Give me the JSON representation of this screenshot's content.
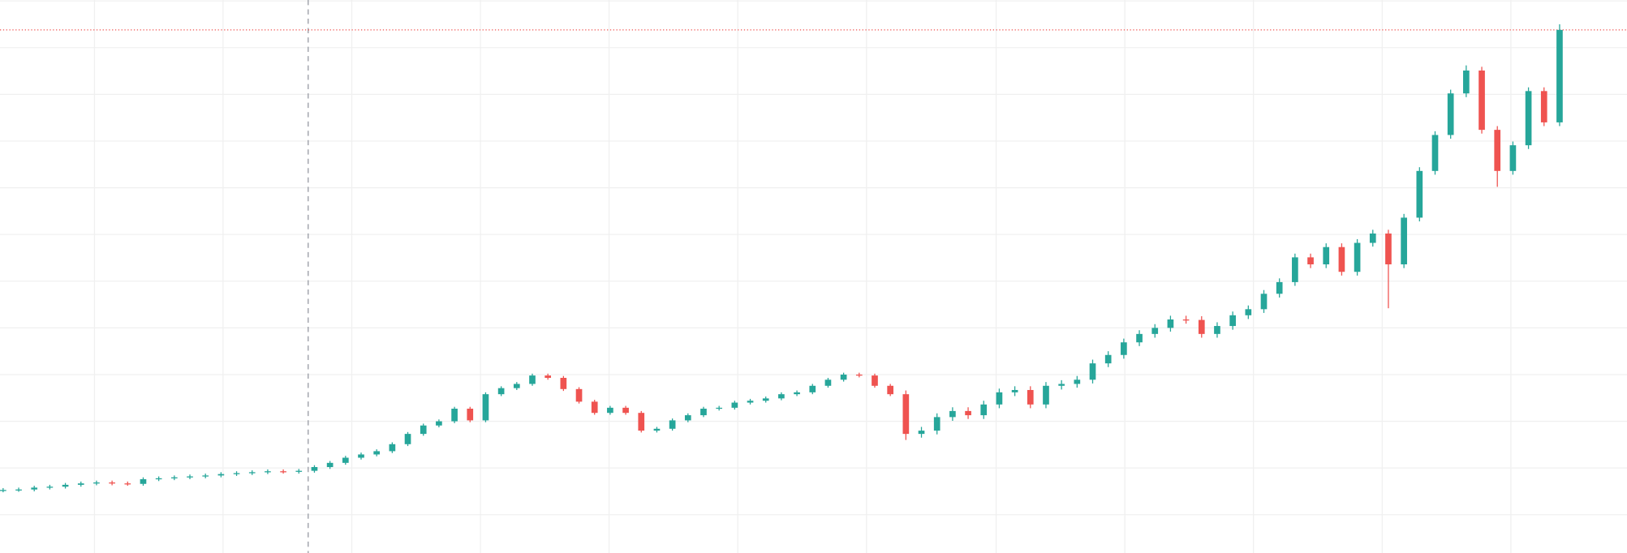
{
  "chart_data": {
    "type": "candlestick",
    "up_color": "#26a69a",
    "down_color": "#ef5350",
    "price_line_color": "#ef5350",
    "grid": true,
    "crosshair_x": 19.6,
    "xlim": [
      -0.2,
      104.33
    ],
    "xticks": [
      5.87,
      14.13,
      22.4,
      30.67,
      38.93,
      47.2,
      55.47,
      63.8,
      72.07,
      80.33,
      88.6,
      96.87
    ],
    "ylim": [
      -0.82,
      11.02
    ],
    "yticks": [
      0,
      1,
      2,
      3,
      4,
      5,
      6,
      7,
      8,
      9,
      10,
      11
    ],
    "open": [
      0.52,
      0.53,
      0.54,
      0.58,
      0.6,
      0.64,
      0.67,
      0.69,
      0.67,
      0.66,
      0.76,
      0.78,
      0.8,
      0.82,
      0.84,
      0.87,
      0.89,
      0.91,
      0.93,
      0.92,
      0.94,
      1.02,
      1.11,
      1.22,
      1.29,
      1.36,
      1.51,
      1.73,
      1.91,
      2.0,
      2.27,
      2.02,
      2.58,
      2.71,
      2.8,
      2.98,
      2.93,
      2.69,
      2.42,
      2.18,
      2.29,
      2.18,
      1.8,
      1.84,
      2.02,
      2.13,
      2.27,
      2.29,
      2.4,
      2.44,
      2.49,
      2.58,
      2.62,
      2.76,
      2.89,
      3.0,
      2.98,
      2.76,
      2.58,
      1.73,
      1.8,
      2.09,
      2.22,
      2.13,
      2.36,
      2.62,
      2.67,
      2.36,
      2.76,
      2.8,
      2.89,
      3.24,
      3.42,
      3.69,
      3.87,
      4.0,
      4.18,
      4.17,
      3.87,
      4.04,
      4.27,
      4.4,
      4.73,
      4.98,
      5.51,
      5.36,
      5.73,
      5.2,
      5.82,
      6.02,
      5.36,
      6.36,
      7.36,
      8.13,
      9.02,
      9.51,
      8.24,
      7.36,
      7.91,
      9.07,
      8.4
    ],
    "high": [
      0.57,
      0.58,
      0.62,
      0.64,
      0.68,
      0.71,
      0.73,
      0.73,
      0.71,
      0.8,
      0.82,
      0.84,
      0.86,
      0.88,
      0.91,
      0.93,
      0.95,
      0.97,
      0.97,
      0.98,
      1.06,
      1.15,
      1.26,
      1.33,
      1.4,
      1.55,
      1.77,
      1.95,
      2.04,
      2.31,
      2.31,
      2.62,
      2.75,
      2.84,
      3.02,
      3.02,
      2.97,
      2.73,
      2.46,
      2.33,
      2.33,
      2.22,
      1.88,
      2.06,
      2.17,
      2.31,
      2.33,
      2.44,
      2.48,
      2.53,
      2.62,
      2.66,
      2.8,
      2.93,
      3.04,
      3.04,
      3.02,
      2.8,
      2.66,
      1.88,
      2.17,
      2.3,
      2.3,
      2.44,
      2.7,
      2.75,
      2.75,
      2.84,
      2.88,
      2.97,
      3.32,
      3.5,
      3.77,
      3.95,
      4.08,
      4.26,
      4.26,
      4.25,
      4.12,
      4.35,
      4.48,
      4.81,
      5.06,
      5.59,
      5.59,
      5.81,
      5.81,
      5.9,
      6.1,
      6.1,
      6.44,
      7.44,
      8.21,
      9.1,
      9.62,
      9.59,
      8.32,
      7.99,
      9.15,
      9.15,
      10.5
    ],
    "low": [
      0.48,
      0.49,
      0.5,
      0.54,
      0.56,
      0.6,
      0.63,
      0.63,
      0.62,
      0.62,
      0.72,
      0.74,
      0.76,
      0.78,
      0.8,
      0.83,
      0.85,
      0.87,
      0.88,
      0.88,
      0.9,
      0.98,
      1.07,
      1.18,
      1.25,
      1.32,
      1.47,
      1.69,
      1.87,
      1.96,
      1.98,
      1.98,
      2.54,
      2.67,
      2.76,
      2.89,
      2.65,
      2.38,
      2.14,
      2.14,
      2.14,
      1.76,
      1.76,
      1.8,
      1.98,
      2.09,
      2.23,
      2.25,
      2.36,
      2.4,
      2.45,
      2.54,
      2.58,
      2.72,
      2.85,
      2.94,
      2.72,
      2.54,
      1.6,
      1.65,
      1.72,
      2.01,
      2.05,
      2.05,
      2.28,
      2.54,
      2.28,
      2.28,
      2.68,
      2.72,
      2.81,
      3.16,
      3.34,
      3.61,
      3.79,
      3.92,
      4.09,
      3.79,
      3.79,
      3.96,
      4.19,
      4.32,
      4.65,
      4.9,
      5.28,
      5.28,
      5.12,
      5.12,
      5.74,
      4.42,
      5.28,
      6.28,
      7.28,
      8.05,
      8.94,
      8.16,
      7.02,
      7.28,
      7.83,
      8.32,
      8.32
    ],
    "close": [
      0.53,
      0.54,
      0.58,
      0.6,
      0.64,
      0.67,
      0.69,
      0.67,
      0.66,
      0.76,
      0.78,
      0.8,
      0.82,
      0.84,
      0.87,
      0.89,
      0.91,
      0.93,
      0.92,
      0.94,
      1.02,
      1.11,
      1.22,
      1.29,
      1.36,
      1.51,
      1.73,
      1.91,
      2.0,
      2.27,
      2.02,
      2.58,
      2.71,
      2.8,
      2.98,
      2.93,
      2.69,
      2.42,
      2.18,
      2.29,
      2.18,
      1.8,
      1.84,
      2.02,
      2.13,
      2.27,
      2.29,
      2.4,
      2.44,
      2.49,
      2.58,
      2.62,
      2.76,
      2.89,
      3.0,
      2.98,
      2.76,
      2.58,
      1.73,
      1.8,
      2.09,
      2.22,
      2.13,
      2.36,
      2.62,
      2.67,
      2.36,
      2.76,
      2.8,
      2.89,
      3.24,
      3.42,
      3.69,
      3.87,
      4.0,
      4.18,
      4.17,
      3.87,
      4.04,
      4.27,
      4.4,
      4.73,
      4.98,
      5.51,
      5.36,
      5.73,
      5.2,
      5.82,
      6.02,
      5.36,
      6.36,
      7.36,
      8.13,
      9.02,
      9.51,
      8.24,
      7.36,
      7.91,
      9.07,
      8.4,
      10.38
    ]
  }
}
